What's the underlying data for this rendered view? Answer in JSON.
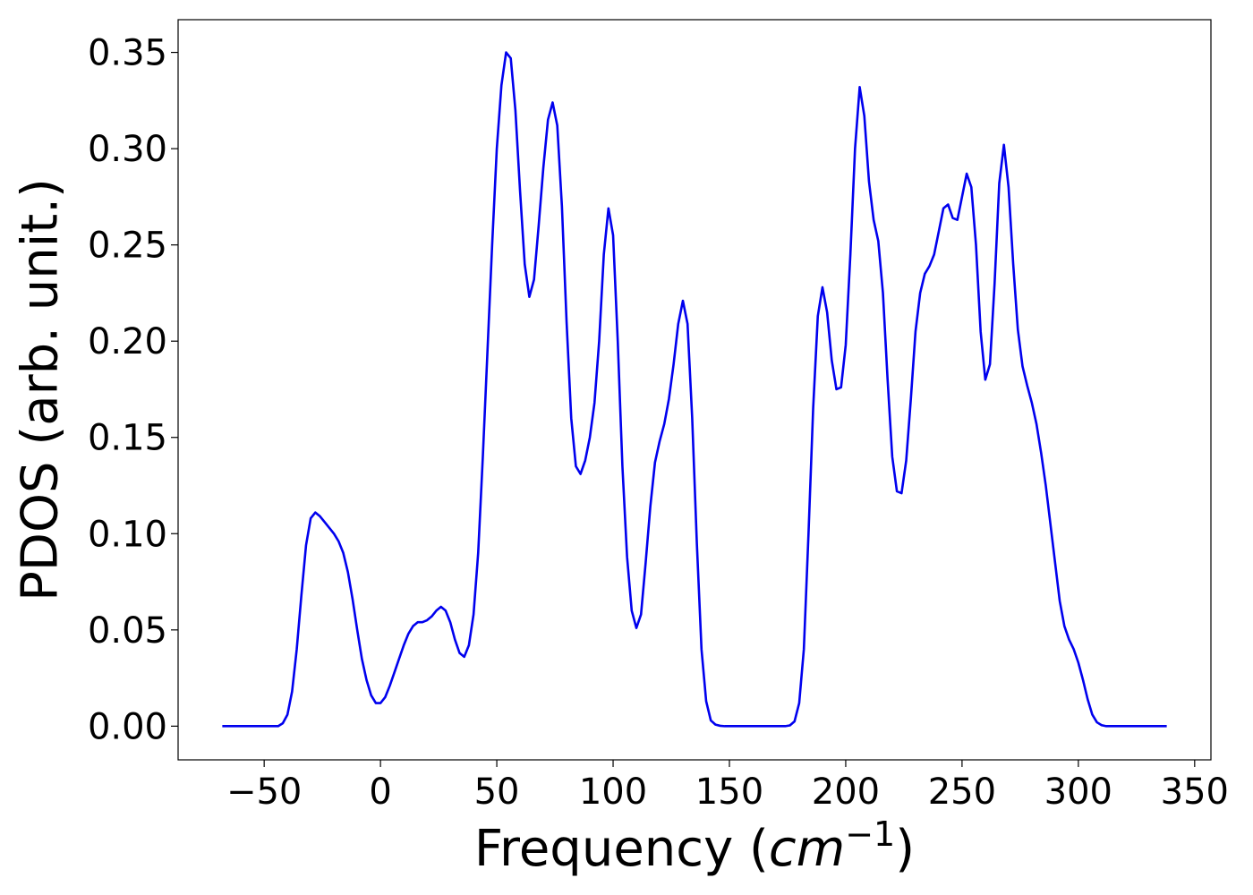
{
  "chart_data": {
    "type": "line",
    "title": "",
    "xlabel_prefix": "Frequency (",
    "xlabel_var": "cm",
    "xlabel_exp": "−1",
    "xlabel_suffix": ")",
    "ylabel": "PDOS (arb. unit.)",
    "xlim": [
      -87,
      357
    ],
    "ylim": [
      -0.0175,
      0.367
    ],
    "xticks": [
      -50,
      0,
      50,
      100,
      150,
      200,
      250,
      300,
      350
    ],
    "xtick_labels": [
      "−50",
      "0",
      "50",
      "100",
      "150",
      "200",
      "250",
      "300",
      "350"
    ],
    "yticks": [
      0.0,
      0.05,
      0.1,
      0.15,
      0.2,
      0.25,
      0.3,
      0.35
    ],
    "ytick_labels": [
      "0.00",
      "0.05",
      "0.10",
      "0.15",
      "0.20",
      "0.25",
      "0.30",
      "0.35"
    ],
    "grid": false,
    "line_color": "#0000ee",
    "series": [
      {
        "x": [
          -68,
          -44,
          -42,
          -40,
          -38,
          -36,
          -34,
          -32,
          -30,
          -28,
          -26,
          -24,
          -22,
          -20,
          -18,
          -16,
          -14,
          -12,
          -10,
          -8,
          -6,
          -4,
          -2,
          0,
          2,
          4,
          6,
          8,
          10,
          12,
          14,
          16,
          18,
          20,
          22,
          24,
          26,
          28,
          30,
          32,
          34,
          36,
          38,
          40,
          42,
          44,
          46,
          48,
          50,
          52,
          54,
          56,
          58,
          60,
          62,
          64,
          66,
          68,
          70,
          72,
          74,
          76,
          78,
          80,
          82,
          84,
          86,
          88,
          90,
          92,
          94,
          96,
          98,
          100,
          102,
          104,
          106,
          108,
          110,
          112,
          114,
          116,
          118,
          120,
          122,
          124,
          126,
          128,
          130,
          132,
          134,
          136,
          138,
          140,
          142,
          144,
          146,
          148,
          150,
          174,
          176,
          178,
          180,
          182,
          184,
          186,
          188,
          190,
          192,
          194,
          196,
          198,
          200,
          202,
          204,
          206,
          208,
          210,
          212,
          214,
          216,
          218,
          220,
          222,
          224,
          226,
          228,
          230,
          232,
          234,
          236,
          238,
          240,
          242,
          244,
          246,
          248,
          250,
          252,
          254,
          256,
          258,
          260,
          262,
          264,
          266,
          268,
          270,
          272,
          274,
          276,
          278,
          280,
          282,
          284,
          286,
          288,
          290,
          292,
          294,
          296,
          298,
          300,
          302,
          304,
          306,
          308,
          310,
          312,
          314,
          338
        ],
        "y": [
          0.0,
          0.0,
          0.0015,
          0.006,
          0.018,
          0.04,
          0.068,
          0.094,
          0.108,
          0.111,
          0.109,
          0.106,
          0.103,
          0.1,
          0.096,
          0.09,
          0.08,
          0.066,
          0.05,
          0.035,
          0.024,
          0.016,
          0.012,
          0.012,
          0.015,
          0.021,
          0.028,
          0.035,
          0.042,
          0.048,
          0.052,
          0.054,
          0.054,
          0.055,
          0.057,
          0.06,
          0.062,
          0.06,
          0.054,
          0.045,
          0.038,
          0.036,
          0.042,
          0.058,
          0.09,
          0.14,
          0.195,
          0.25,
          0.3,
          0.333,
          0.35,
          0.347,
          0.32,
          0.278,
          0.24,
          0.223,
          0.232,
          0.26,
          0.29,
          0.315,
          0.324,
          0.312,
          0.27,
          0.21,
          0.16,
          0.135,
          0.131,
          0.138,
          0.15,
          0.168,
          0.2,
          0.245,
          0.269,
          0.255,
          0.2,
          0.135,
          0.088,
          0.06,
          0.051,
          0.058,
          0.085,
          0.114,
          0.137,
          0.148,
          0.157,
          0.17,
          0.188,
          0.209,
          0.221,
          0.209,
          0.16,
          0.095,
          0.04,
          0.013,
          0.003,
          0.0008,
          0.0002,
          0.0,
          0.0,
          0.0,
          0.0004,
          0.0025,
          0.012,
          0.04,
          0.1,
          0.165,
          0.213,
          0.228,
          0.215,
          0.19,
          0.175,
          0.176,
          0.198,
          0.245,
          0.3,
          0.332,
          0.317,
          0.283,
          0.263,
          0.252,
          0.225,
          0.18,
          0.14,
          0.122,
          0.121,
          0.138,
          0.17,
          0.205,
          0.225,
          0.235,
          0.239,
          0.245,
          0.257,
          0.269,
          0.271,
          0.264,
          0.263,
          0.275,
          0.287,
          0.28,
          0.25,
          0.205,
          0.18,
          0.188,
          0.23,
          0.282,
          0.302,
          0.28,
          0.24,
          0.206,
          0.187,
          0.177,
          0.168,
          0.157,
          0.142,
          0.125,
          0.105,
          0.085,
          0.065,
          0.052,
          0.045,
          0.04,
          0.033,
          0.024,
          0.014,
          0.006,
          0.002,
          0.0005,
          0.0,
          0.0,
          0.0
        ]
      }
    ]
  }
}
